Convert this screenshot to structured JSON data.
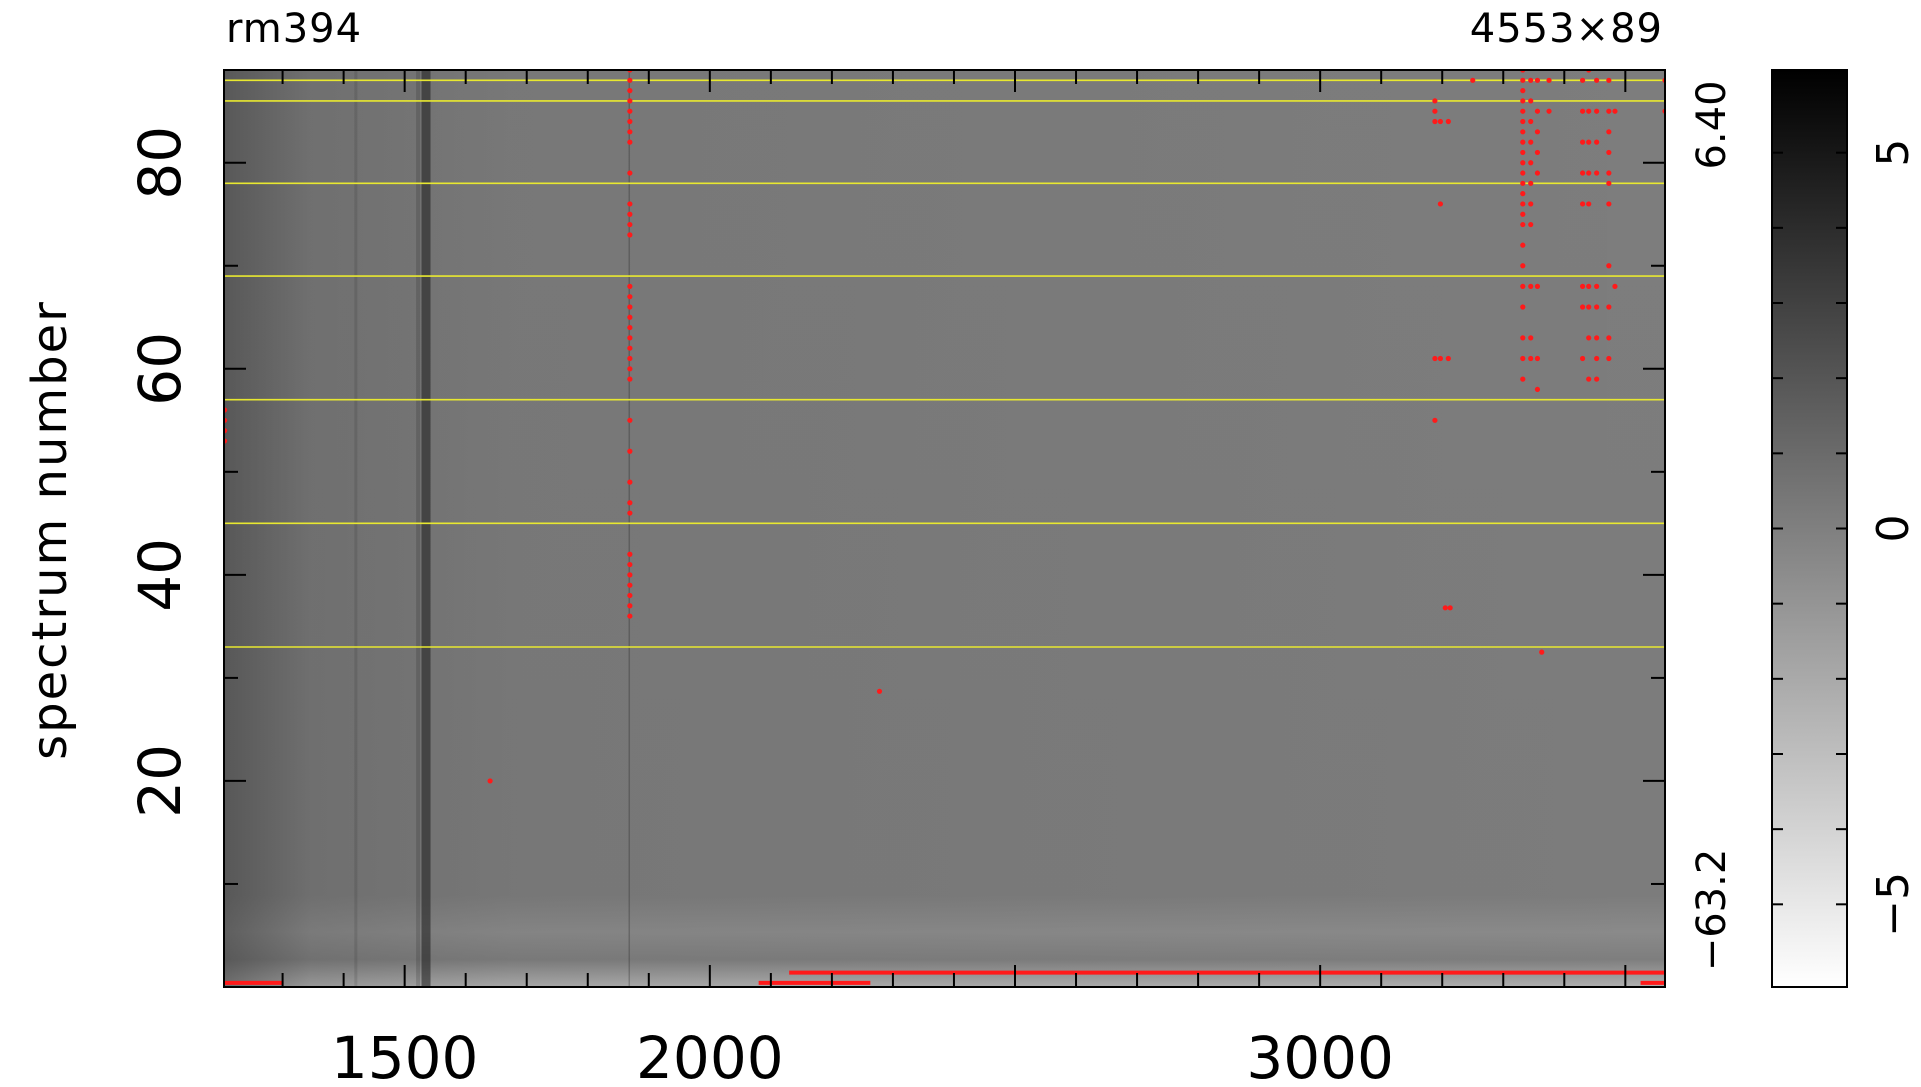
{
  "header": {
    "object_name": "rm394",
    "dimensions": "4553×89"
  },
  "chart_data": {
    "type": "heatmap",
    "title": "",
    "xlabel": "",
    "ylabel": "spectrum number",
    "xlim": [
      1204,
      3565
    ],
    "ylim": [
      0,
      89
    ],
    "x_tick_labels": [
      {
        "value": 1500,
        "label": "1500"
      },
      {
        "value": 2000,
        "label": "2000"
      },
      {
        "value": 3000,
        "label": "3000"
      }
    ],
    "x_tick_values": [
      1300,
      1400,
      1500,
      1600,
      1700,
      1800,
      1900,
      2000,
      2100,
      2200,
      2300,
      2400,
      2500,
      2600,
      2700,
      2800,
      2900,
      3000,
      3100,
      3200,
      3300,
      3400,
      3500
    ],
    "x_major_ticks": [
      1500,
      2000,
      2500,
      3000,
      3500
    ],
    "y_ticks": [
      20,
      40,
      60,
      80
    ],
    "y_minor_ticks": [
      10,
      20,
      30,
      40,
      50,
      60,
      70,
      80
    ],
    "data_range_labels": {
      "max": "6.40",
      "min": "−63.2"
    },
    "colorbar": {
      "range": [
        -6.1,
        6.1
      ],
      "tick_labels": [
        {
          "value": 5,
          "label": "5"
        },
        {
          "value": 0,
          "label": "0"
        },
        {
          "value": -5,
          "label": "−5"
        }
      ],
      "minor_ticks": [
        -5,
        -4,
        -3,
        -2,
        -1,
        0,
        1,
        2,
        3,
        4,
        5
      ],
      "colormap": "grayscale, white = low, black = high"
    },
    "colors": {
      "frame": "#000000",
      "mask": "#ff1a1a",
      "fiber_lines": "#e8e830",
      "background": "#7d7d7d"
    },
    "fiber_bundle_lines_y": [
      33,
      45,
      57,
      69,
      78,
      86,
      88
    ],
    "dark_columns": [
      {
        "x": 1535,
        "strength": 1.0,
        "width": 9
      },
      {
        "x": 1522,
        "strength": 0.35,
        "width": 4
      },
      {
        "x": 1420,
        "strength": 0.25,
        "width": 3
      },
      {
        "x": 1868,
        "strength": 0.5,
        "width": 1.5
      }
    ],
    "masked_points": [
      {
        "x": 1205,
        "y": [
          53,
          54,
          55,
          56
        ]
      },
      {
        "x": 1869,
        "y": [
          36,
          37,
          38,
          39,
          40,
          41,
          42,
          46,
          47,
          49,
          52,
          55,
          59,
          60,
          61,
          62,
          63,
          64,
          65,
          66,
          67,
          68,
          73,
          74,
          75,
          76,
          79,
          82,
          83,
          84,
          85,
          86,
          87,
          88,
          89
        ]
      },
      {
        "x": 1640,
        "y": [
          20
        ]
      },
      {
        "x": 2278,
        "y": [
          28.7
        ]
      },
      {
        "x": 3188,
        "y": [
          55,
          61,
          84,
          85,
          86
        ]
      },
      {
        "x": 3197,
        "y": [
          61,
          76,
          84
        ]
      },
      {
        "x": 3210,
        "y": [
          61,
          84
        ]
      },
      {
        "x": 3205,
        "y": [
          36.8
        ]
      },
      {
        "x": 3213,
        "y": [
          36.8
        ]
      },
      {
        "x": 3250,
        "y": [
          88
        ]
      },
      {
        "x": 3332,
        "y": [
          59,
          61,
          63,
          66,
          68,
          70,
          72,
          74,
          75,
          76,
          77,
          78,
          79,
          80,
          81,
          82,
          83,
          84,
          85,
          86,
          87,
          88,
          89
        ]
      },
      {
        "x": 3345,
        "y": [
          61,
          63,
          68,
          74,
          76,
          78,
          80,
          82,
          84,
          86,
          88
        ]
      },
      {
        "x": 3356,
        "y": [
          58,
          61,
          68,
          79,
          81,
          83,
          85,
          88
        ]
      },
      {
        "x": 3363,
        "y": [
          32.5
        ]
      },
      {
        "x": 3375,
        "y": [
          85,
          88
        ]
      },
      {
        "x": 3430,
        "y": [
          61,
          66,
          68,
          76,
          79,
          82,
          85,
          88
        ]
      },
      {
        "x": 3440,
        "y": [
          59,
          63,
          66,
          68,
          76,
          79,
          82,
          85,
          89
        ]
      },
      {
        "x": 3453,
        "y": [
          59,
          61,
          63,
          66,
          68,
          79,
          82,
          85,
          88
        ]
      },
      {
        "x": 3473,
        "y": [
          61,
          63,
          66,
          70,
          76,
          78,
          79,
          81,
          83,
          85,
          88
        ]
      },
      {
        "x": 3483,
        "y": [
          68,
          85
        ]
      },
      {
        "x": 3565,
        "y": [
          85,
          88
        ]
      }
    ],
    "masked_segments": [
      {
        "x0": 1204,
        "x1": 1300,
        "y": 0.4
      },
      {
        "x0": 2080,
        "x1": 2263,
        "y": 0.4
      },
      {
        "x0": 2130,
        "x1": 3565,
        "y": 1.4
      },
      {
        "x0": 3525,
        "x1": 3565,
        "y": 0.4
      }
    ]
  }
}
